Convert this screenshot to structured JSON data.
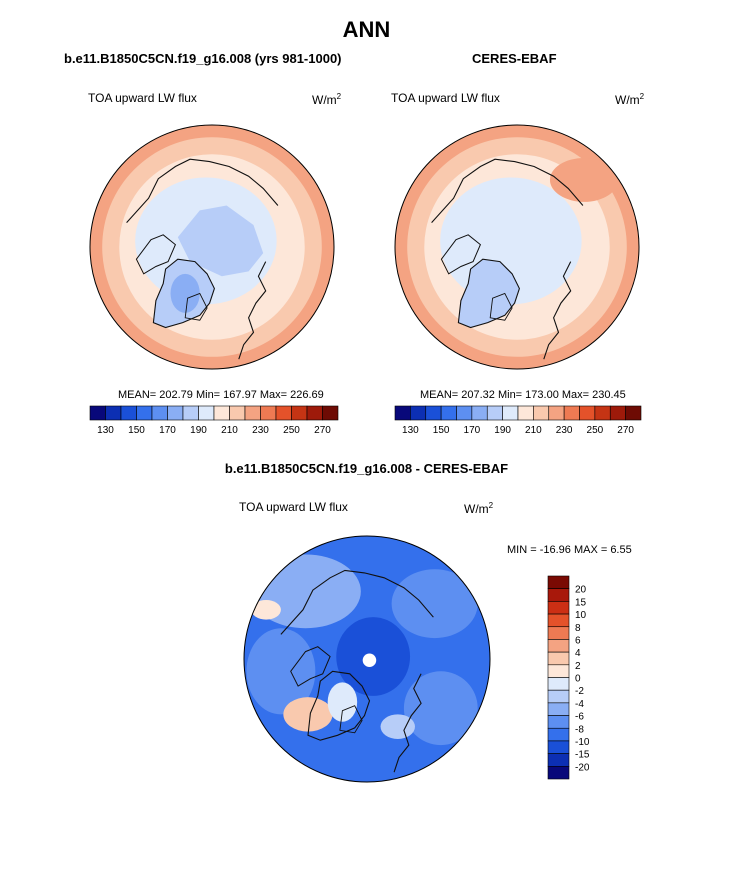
{
  "figure": {
    "title": "ANN"
  },
  "chart_data": [
    {
      "type": "heatmap",
      "projection": "north-polar-stereographic",
      "title": "b.e11.B1850C5CN.f19_g16.008 (yrs 981-1000)",
      "variable": "TOA upward LW flux",
      "units": "W/m",
      "units_exp": "2",
      "stats": {
        "mean": 202.79,
        "min": 167.97,
        "max": 226.69
      },
      "stats_text": "MEAN= 202.79  Min= 167.97  Max= 226.69",
      "colorbar": {
        "orientation": "horizontal",
        "levels": [
          130,
          140,
          150,
          160,
          170,
          180,
          190,
          200,
          210,
          220,
          230,
          240,
          250,
          260,
          270
        ],
        "tick_labels": [
          "130",
          "150",
          "170",
          "190",
          "210",
          "230",
          "250",
          "270"
        ],
        "colors": [
          "#08087a",
          "#0c2fb3",
          "#1a50d8",
          "#3470ec",
          "#5d8ff1",
          "#8aaef4",
          "#b7cdf8",
          "#deeafb",
          "#fde7d9",
          "#f9c9ae",
          "#f4a382",
          "#ee7a53",
          "#e4522a",
          "#c53414",
          "#9e1a0a",
          "#6e0b04"
        ]
      }
    },
    {
      "type": "heatmap",
      "projection": "north-polar-stereographic",
      "title": "CERES-EBAF",
      "variable": "TOA upward LW flux",
      "units": "W/m",
      "units_exp": "2",
      "stats": {
        "mean": 207.32,
        "min": 173.0,
        "max": 230.45
      },
      "stats_text": "MEAN= 207.32  Min= 173.00  Max= 230.45",
      "colorbar": {
        "orientation": "horizontal",
        "levels": [
          130,
          140,
          150,
          160,
          170,
          180,
          190,
          200,
          210,
          220,
          230,
          240,
          250,
          260,
          270
        ],
        "tick_labels": [
          "130",
          "150",
          "170",
          "190",
          "210",
          "230",
          "250",
          "270"
        ],
        "colors": [
          "#08087a",
          "#0c2fb3",
          "#1a50d8",
          "#3470ec",
          "#5d8ff1",
          "#8aaef4",
          "#b7cdf8",
          "#deeafb",
          "#fde7d9",
          "#f9c9ae",
          "#f4a382",
          "#ee7a53",
          "#e4522a",
          "#c53414",
          "#9e1a0a",
          "#6e0b04"
        ]
      }
    },
    {
      "type": "heatmap",
      "projection": "north-polar-stereographic",
      "title": "b.e11.B1850C5CN.f19_g16.008 - CERES-EBAF",
      "variable": "TOA upward LW flux",
      "units": "W/m",
      "units_exp": "2",
      "stats": {
        "min": -16.96,
        "max": 6.55
      },
      "stats_text": "MIN = -16.96 MAX =   6.55",
      "colorbar": {
        "orientation": "vertical",
        "tick_labels": [
          "20",
          "15",
          "10",
          "8",
          "6",
          "4",
          "2",
          "0",
          "-2",
          "-4",
          "-6",
          "-8",
          "-10",
          "-15",
          "-20"
        ],
        "colors": [
          "#7a0a03",
          "#a8180b",
          "#cc2f14",
          "#e4522a",
          "#ee7a53",
          "#f4a382",
          "#f9c9ae",
          "#fde7d9",
          "#deeafb",
          "#b7cdf8",
          "#8aaef4",
          "#5d8ff1",
          "#3470ec",
          "#1a50d8",
          "#0c2fb3",
          "#08087a"
        ]
      }
    }
  ]
}
